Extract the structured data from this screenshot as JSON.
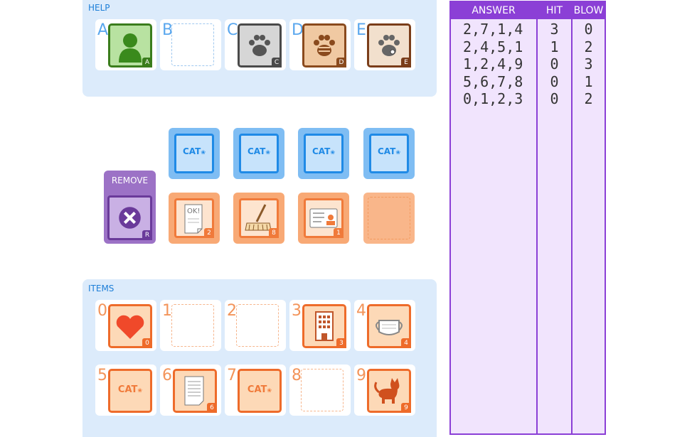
{
  "help": {
    "title": "HELP",
    "slots": [
      {
        "letter": "A",
        "badge": "A",
        "icon": "person-silhouette-icon"
      },
      {
        "letter": "B",
        "badge": "",
        "icon": ""
      },
      {
        "letter": "C",
        "badge": "C",
        "icon": "paw-print-icon"
      },
      {
        "letter": "D",
        "badge": "D",
        "icon": "paw-print-icon"
      },
      {
        "letter": "E",
        "badge": "E",
        "icon": "paw-print-icon"
      }
    ]
  },
  "board": {
    "cat_label": "CAT",
    "remove_label": "REMOVE",
    "remove_badge": "R",
    "bottom_cards": [
      {
        "badge": "2",
        "icon": "ok-paper-icon",
        "ok_text": "OK!"
      },
      {
        "badge": "8",
        "icon": "broom-icon"
      },
      {
        "badge": "1",
        "icon": "id-card-icon"
      }
    ]
  },
  "items": {
    "title": "ITEMS",
    "slots": [
      {
        "number": "0",
        "badge": "0",
        "icon": "heart-icon"
      },
      {
        "number": "1",
        "badge": "",
        "icon": ""
      },
      {
        "number": "2",
        "badge": "",
        "icon": ""
      },
      {
        "number": "3",
        "badge": "3",
        "icon": "building-icon"
      },
      {
        "number": "4",
        "badge": "4",
        "icon": "mask-icon"
      },
      {
        "number": "5",
        "badge": "",
        "icon": "cat-text"
      },
      {
        "number": "6",
        "badge": "6",
        "icon": "document-icon"
      },
      {
        "number": "7",
        "badge": "",
        "icon": "cat-text"
      },
      {
        "number": "8",
        "badge": "",
        "icon": ""
      },
      {
        "number": "9",
        "badge": "9",
        "icon": "cat-icon"
      }
    ]
  },
  "answers": {
    "headers": {
      "answer": "ANSWER",
      "hit": "HIT",
      "blow": "BLOW"
    },
    "rows": [
      {
        "answer": "2,7,1,4",
        "hit": "3",
        "blow": "0"
      },
      {
        "answer": "2,4,5,1",
        "hit": "1",
        "blow": "2"
      },
      {
        "answer": "1,2,4,9",
        "hit": "0",
        "blow": "3"
      },
      {
        "answer": "5,6,7,8",
        "hit": "0",
        "blow": "1"
      },
      {
        "answer": "0,1,2,3",
        "hit": "0",
        "blow": "2"
      }
    ]
  },
  "colors": {
    "panel_bg": "#dcebfb",
    "title_blue": "#1e7fd8",
    "table_purple": "#8b3fd6",
    "table_bg": "#f1e4fd",
    "orange_accent": "#ee6b2a"
  }
}
